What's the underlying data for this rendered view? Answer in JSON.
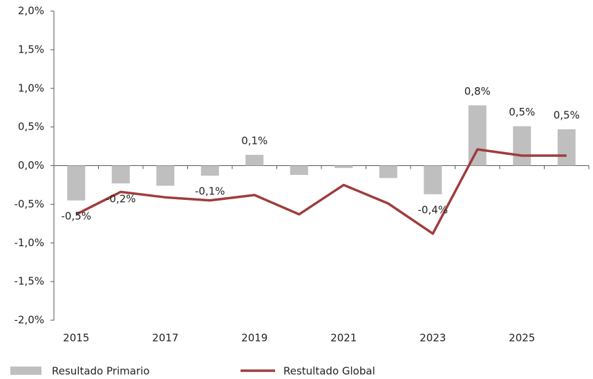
{
  "chart_data": {
    "type": "bar",
    "categories": [
      "2015",
      null,
      "2017",
      null,
      "2019",
      null,
      "2021",
      null,
      "2023",
      null,
      "2025",
      null
    ],
    "series": [
      {
        "name": "Resultado Primario",
        "type": "bar",
        "color": "#bfbfbf",
        "values": [
          -0.45,
          -0.23,
          -0.26,
          -0.13,
          0.14,
          -0.12,
          -0.03,
          -0.16,
          -0.37,
          0.78,
          0.51,
          0.47
        ],
        "value_labels": [
          "-0,5%",
          "-0,2%",
          null,
          "-0,1%",
          "0,1%",
          null,
          null,
          null,
          "-0,4%",
          "0,8%",
          "0,5%",
          "0,5%"
        ]
      },
      {
        "name": "Restultado Global",
        "type": "line",
        "color": "#a03c3c",
        "values": [
          -0.63,
          -0.34,
          -0.41,
          -0.45,
          -0.38,
          -0.63,
          -0.25,
          -0.49,
          -0.88,
          0.21,
          0.13,
          0.13
        ]
      }
    ],
    "ylim": [
      -2,
      2
    ],
    "yticks": [
      {
        "value": -2,
        "label": "-2,0%"
      },
      {
        "value": -1.5,
        "label": "-1,5%"
      },
      {
        "value": -1,
        "label": "-1,0%"
      },
      {
        "value": -0.5,
        "label": "-0,5%"
      },
      {
        "value": 0,
        "label": "0,0%"
      },
      {
        "value": 0.5,
        "label": "0,5%"
      },
      {
        "value": 1,
        "label": "1,0%"
      },
      {
        "value": 1.5,
        "label": "1,5%"
      },
      {
        "value": 2,
        "label": "2,0%"
      }
    ]
  }
}
